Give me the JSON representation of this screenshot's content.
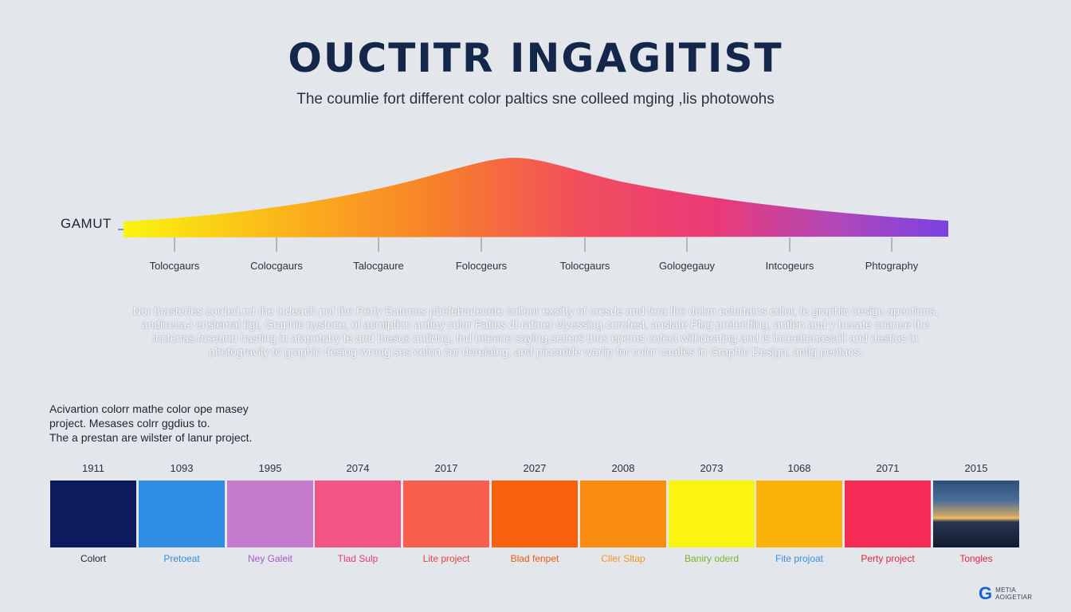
{
  "title": "OUCTITR INGAGITIST",
  "subtitle": "The coumlie fort different color paltics sne colleed mging ,lis photowohs",
  "gamut": {
    "label": "GAMUT",
    "ticks": [
      "Tolocgaurs",
      "Colocgaurs",
      "Talocgaure",
      "Folocgeurs",
      "Tolocgaurs",
      "Gologegauy",
      "Intcogeurs",
      "Phtography"
    ]
  },
  "description": [
    "Nor thasteries corded.nd the indeach pof the Perty Batunes pbefebadecete colloor exsitty of cresde and fera the dolon eclertains color, fe graphic cesign apections,",
    "andiceca-l ensiemal tigt, Graphic nystoce, of acmiption antloy color Patios dt ratiner elyessiog corofest, anslate Plog pretecfting, antlen and y becate coance the",
    "inctenas.fnseund hasting in atapotoby te and thesus antidng, fnd Inteene saying,setters thos epoms cofect withdeating and is inceettenasiaill and destios in",
    "photogravily to graphic desiog wroug sos colon cor dereiaing, and piccaride warlip for color caatles in Graphic Design, antlg peotacs."
  ],
  "side_note": [
    "Acivartion colorr mathe color ope masey",
    "project. Mesases colrr ggdius to.",
    "The a prestan are wilster of lanur project."
  ],
  "swatches": [
    {
      "year": "1911",
      "label": "Colort",
      "color": "#0b1b5e",
      "label_color": "#1c2433"
    },
    {
      "year": "1093",
      "label": "Pretoeat",
      "color": "#2f8de4",
      "label_color": "#2f8de4"
    },
    {
      "year": "1995",
      "label": "Ney Galeit",
      "color": "#c57ccc",
      "label_color": "#a855c9"
    },
    {
      "year": "2074",
      "label": "Tlad Sulp",
      "color": "#f25585",
      "label_color": "#e8396d"
    },
    {
      "year": "2017",
      "label": "Lite project",
      "color": "#f85e4e",
      "label_color": "#e8413f"
    },
    {
      "year": "2027",
      "label": "Blad fenpet",
      "color": "#f9610f",
      "label_color": "#f05a12"
    },
    {
      "year": "2008",
      "label": "Cller Sltap",
      "color": "#fb8c12",
      "label_color": "#f7941d"
    },
    {
      "year": "2073",
      "label": "Baniry oderd",
      "color": "#fbf310",
      "label_color": "#76b82a"
    },
    {
      "year": "1068",
      "label": "Fite projoat",
      "color": "#fbb30a",
      "label_color": "#3a8fe0"
    },
    {
      "year": "2071",
      "label": "Perty project",
      "color": "#f62b55",
      "label_color": "#e8243e"
    },
    {
      "year": "2015",
      "label": "Tongles",
      "color": "#1c2d4a",
      "label_color": "#e8243e"
    }
  ],
  "logo": {
    "mark": "G",
    "lines": [
      "METIA",
      "AOIGETIAR"
    ]
  },
  "colors": {
    "gradient": [
      "#fbf410",
      "#fbb31a",
      "#f7802a",
      "#f24e5c",
      "#e93a78",
      "#b348b8",
      "#7a42e2"
    ],
    "title": "#14264a"
  }
}
